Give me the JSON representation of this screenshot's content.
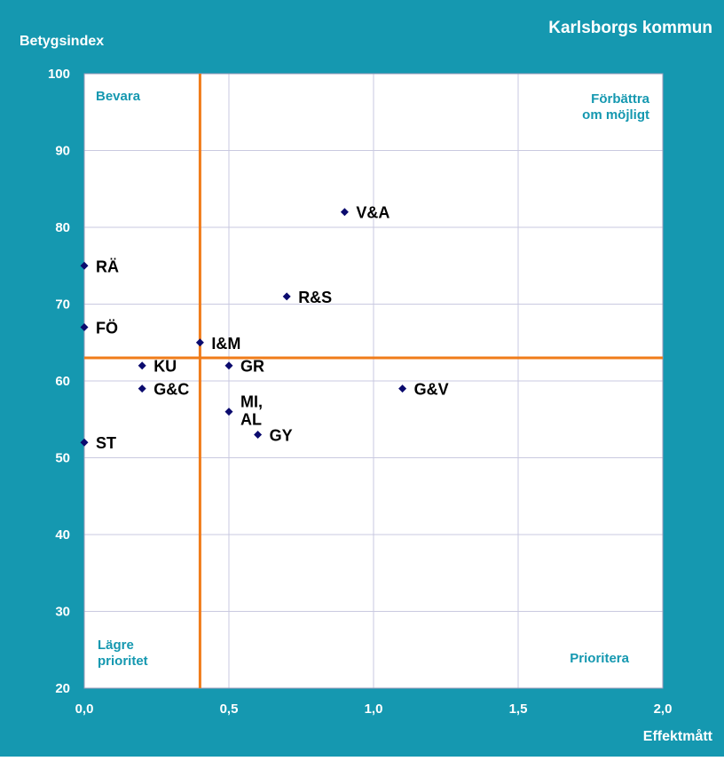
{
  "chart_data": {
    "type": "scatter",
    "title": "Karlsborgs kommun",
    "xlabel": "Effektmått",
    "ylabel": "Betygsindex",
    "xlim": [
      0,
      2
    ],
    "ylim": [
      20,
      100
    ],
    "x_ticks": [
      "0,0",
      "0,5",
      "1,0",
      "1,5",
      "2,0"
    ],
    "y_ticks": [
      "20",
      "30",
      "40",
      "50",
      "60",
      "70",
      "80",
      "90",
      "100"
    ],
    "grid": true,
    "reference_lines": {
      "x": 0.4,
      "y": 63
    },
    "quadrant_labels": {
      "top_left": "Bevara",
      "top_right": [
        "Förbättra",
        "om möjligt"
      ],
      "bottom_left": [
        "Lägre",
        "prioritet"
      ],
      "bottom_right": "Prioritera"
    },
    "points": [
      {
        "label": "V&A",
        "x": 0.9,
        "y": 82
      },
      {
        "label": "RÄ",
        "x": 0.0,
        "y": 75
      },
      {
        "label": "R&S",
        "x": 0.7,
        "y": 71
      },
      {
        "label": "FÖ",
        "x": 0.0,
        "y": 67
      },
      {
        "label": "I&M",
        "x": 0.4,
        "y": 65
      },
      {
        "label": "KU",
        "x": 0.2,
        "y": 62
      },
      {
        "label": "GR",
        "x": 0.5,
        "y": 62
      },
      {
        "label": "G&C",
        "x": 0.2,
        "y": 59
      },
      {
        "label": "G&V",
        "x": 1.1,
        "y": 59
      },
      {
        "label": [
          "MI,",
          "AL"
        ],
        "x": 0.5,
        "y": 56
      },
      {
        "label": "GY",
        "x": 0.6,
        "y": 53
      },
      {
        "label": "ST",
        "x": 0.0,
        "y": 52
      }
    ],
    "colors": {
      "frame": "#1598b0",
      "plot_bg": "#ffffff",
      "grid": "#c9c9e0",
      "ref_line": "#f07c1a",
      "marker": "#0b0b6e",
      "quadrant_text": "#1598b0",
      "axis_text": "#ffffff",
      "label_text": "#000000"
    }
  }
}
